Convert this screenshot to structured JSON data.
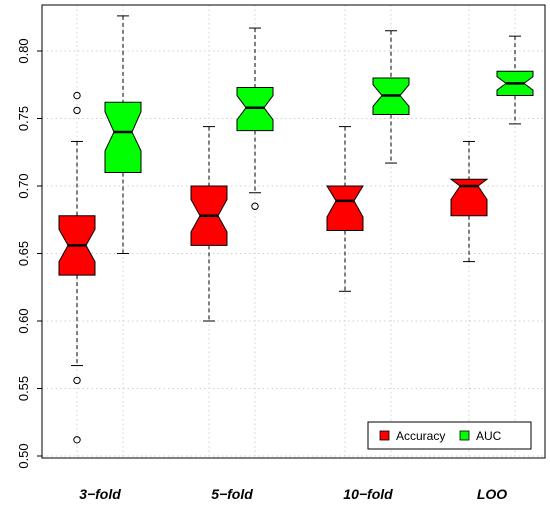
{
  "chart_data": {
    "type": "boxplot",
    "notched": true,
    "categories": [
      "3−fold",
      "5−fold",
      "10−fold",
      "LOO"
    ],
    "ylim": [
      0.5,
      0.82
    ],
    "yticks": [
      "0.50",
      "0.55",
      "0.60",
      "0.65",
      "0.70",
      "0.75",
      "0.80"
    ],
    "grid": true,
    "legend_position": "bottom-right",
    "series": [
      {
        "name": "Accuracy",
        "color": "#ff0000",
        "boxes": [
          {
            "min": 0.567,
            "q1": 0.634,
            "median": 0.656,
            "q3": 0.678,
            "max": 0.733,
            "notch_low": 0.644,
            "notch_high": 0.668,
            "outliers": [
              0.767,
              0.756,
              0.556,
              0.512
            ]
          },
          {
            "min": 0.6,
            "q1": 0.656,
            "median": 0.678,
            "q3": 0.7,
            "max": 0.744,
            "notch_low": 0.666,
            "notch_high": 0.69,
            "outliers": []
          },
          {
            "min": 0.622,
            "q1": 0.667,
            "median": 0.689,
            "q3": 0.7,
            "max": 0.744,
            "notch_low": 0.677,
            "notch_high": 0.7,
            "outliers": []
          },
          {
            "min": 0.644,
            "q1": 0.678,
            "median": 0.7,
            "q3": 0.705,
            "max": 0.733,
            "notch_low": 0.69,
            "notch_high": 0.705,
            "outliers": []
          }
        ]
      },
      {
        "name": "AUC",
        "color": "#00ff00",
        "boxes": [
          {
            "min": 0.65,
            "q1": 0.71,
            "median": 0.74,
            "q3": 0.762,
            "max": 0.826,
            "notch_low": 0.726,
            "notch_high": 0.755,
            "outliers": []
          },
          {
            "min": 0.695,
            "q1": 0.741,
            "median": 0.758,
            "q3": 0.773,
            "max": 0.817,
            "notch_low": 0.749,
            "notch_high": 0.767,
            "outliers": [
              0.685
            ]
          },
          {
            "min": 0.717,
            "q1": 0.753,
            "median": 0.767,
            "q3": 0.78,
            "max": 0.815,
            "notch_low": 0.759,
            "notch_high": 0.775,
            "outliers": []
          },
          {
            "min": 0.746,
            "q1": 0.767,
            "median": 0.776,
            "q3": 0.785,
            "max": 0.811,
            "notch_low": 0.771,
            "notch_high": 0.781,
            "outliers": []
          }
        ]
      }
    ]
  }
}
